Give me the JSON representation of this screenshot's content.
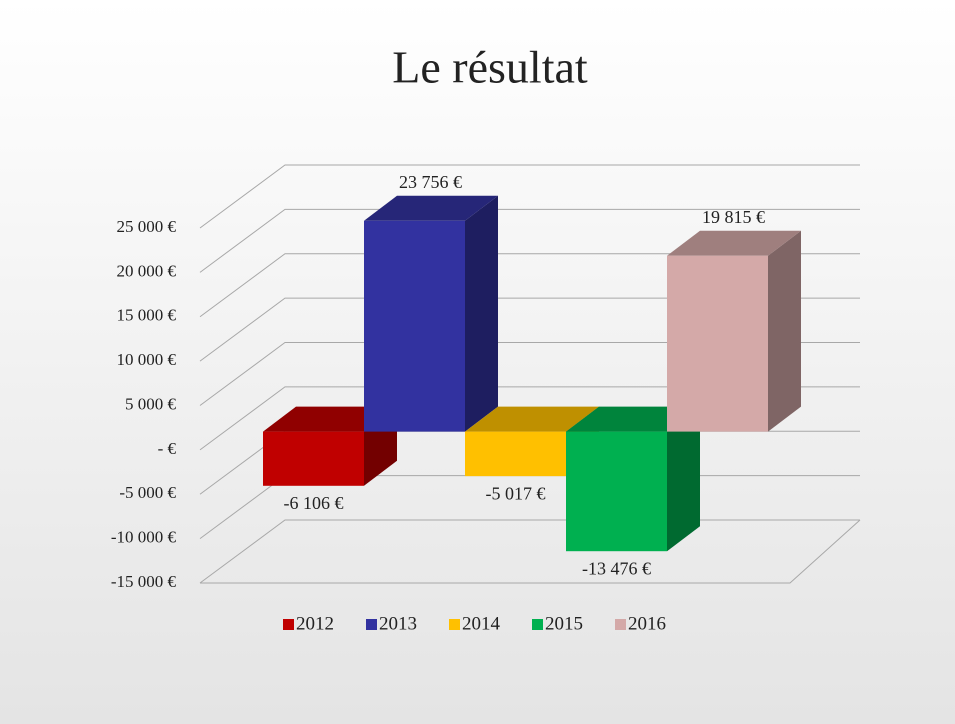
{
  "chart_data": {
    "type": "bar3d",
    "title": "Le résultat",
    "series": [
      {
        "name": "2012",
        "color": "#c00000",
        "values": [
          -6106
        ],
        "value_labels": [
          "-6 106 €"
        ]
      },
      {
        "name": "2013",
        "color": "#3232a0",
        "values": [
          23756
        ],
        "value_labels": [
          "23 756 €"
        ]
      },
      {
        "name": "2014",
        "color": "#ffc000",
        "values": [
          -5017
        ],
        "value_labels": [
          "-5 017 €"
        ]
      },
      {
        "name": "2015",
        "color": "#00b050",
        "values": [
          -13476
        ],
        "value_labels": [
          "-13 476 €"
        ]
      },
      {
        "name": "2016",
        "color": "#d4a9a8",
        "values": [
          19815
        ],
        "value_labels": [
          "19 815 €"
        ]
      }
    ],
    "ylim": [
      -15000,
      25000
    ],
    "yticks": [
      {
        "value": 25000,
        "label": "25 000 €"
      },
      {
        "value": 20000,
        "label": "20 000 €"
      },
      {
        "value": 15000,
        "label": "15 000 €"
      },
      {
        "value": 10000,
        "label": "10 000 €"
      },
      {
        "value": 5000,
        "label": "5 000 €"
      },
      {
        "value": 0,
        "label": "-  €"
      },
      {
        "value": -5000,
        "label": "-5 000 €"
      },
      {
        "value": -10000,
        "label": "-10 000 €"
      },
      {
        "value": -15000,
        "label": "-15 000 €"
      }
    ],
    "grid": true,
    "legend": "bottom"
  }
}
